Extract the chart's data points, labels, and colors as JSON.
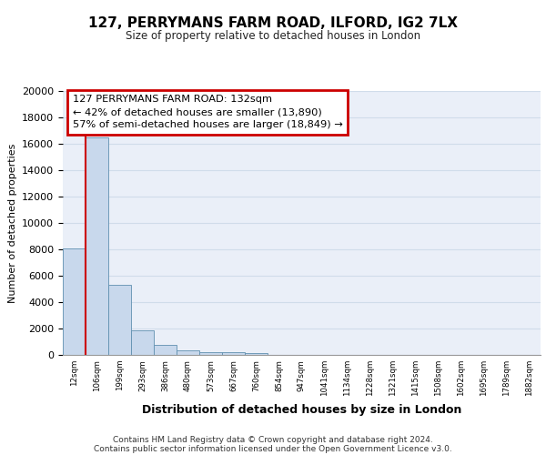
{
  "title": "127, PERRYMANS FARM ROAD, ILFORD, IG2 7LX",
  "subtitle": "Size of property relative to detached houses in London",
  "xlabel": "Distribution of detached houses by size in London",
  "ylabel": "Number of detached properties",
  "bin_labels": [
    "12sqm",
    "106sqm",
    "199sqm",
    "293sqm",
    "386sqm",
    "480sqm",
    "573sqm",
    "667sqm",
    "760sqm",
    "854sqm",
    "947sqm",
    "1041sqm",
    "1134sqm",
    "1228sqm",
    "1321sqm",
    "1415sqm",
    "1508sqm",
    "1602sqm",
    "1695sqm",
    "1789sqm",
    "1882sqm"
  ],
  "bar_values": [
    8100,
    16500,
    5300,
    1850,
    780,
    340,
    230,
    175,
    150,
    0,
    0,
    0,
    0,
    0,
    0,
    0,
    0,
    0,
    0,
    0,
    0
  ],
  "bar_color": "#c8d8ec",
  "bar_edge_color": "#6090b0",
  "annotation_text": "127 PERRYMANS FARM ROAD: 132sqm\n← 42% of detached houses are smaller (13,890)\n57% of semi-detached houses are larger (18,849) →",
  "annotation_box_color": "#cc0000",
  "ylim": [
    0,
    20000
  ],
  "yticks": [
    0,
    2000,
    4000,
    6000,
    8000,
    10000,
    12000,
    14000,
    16000,
    18000,
    20000
  ],
  "grid_color": "#d0dcea",
  "bg_color": "#eaeff8",
  "footer_line1": "Contains HM Land Registry data © Crown copyright and database right 2024.",
  "footer_line2": "Contains public sector information licensed under the Open Government Licence v3.0.",
  "red_line_color": "#cc0000",
  "red_line_x": 0.5
}
